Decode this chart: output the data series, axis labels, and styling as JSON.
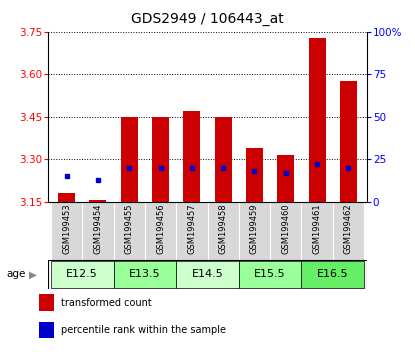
{
  "title": "GDS2949 / 106443_at",
  "samples": [
    "GSM199453",
    "GSM199454",
    "GSM199455",
    "GSM199456",
    "GSM199457",
    "GSM199458",
    "GSM199459",
    "GSM199460",
    "GSM199461",
    "GSM199462"
  ],
  "transformed_count": [
    3.18,
    3.155,
    3.45,
    3.45,
    3.47,
    3.45,
    3.34,
    3.315,
    3.73,
    3.575
  ],
  "percentile_rank": [
    15,
    13,
    20,
    20,
    20,
    20,
    18,
    17,
    22,
    20
  ],
  "ymin": 3.15,
  "ymax": 3.75,
  "yticks": [
    3.15,
    3.3,
    3.45,
    3.6,
    3.75
  ],
  "right_yticks": [
    0,
    25,
    50,
    75,
    100
  ],
  "right_ylabels": [
    "0",
    "25",
    "50",
    "75",
    "100%"
  ],
  "age_groups": [
    {
      "label": "E12.5",
      "samples": [
        0,
        1
      ],
      "color": "#ccffcc"
    },
    {
      "label": "E13.5",
      "samples": [
        2,
        3
      ],
      "color": "#99ff99"
    },
    {
      "label": "E14.5",
      "samples": [
        4,
        5
      ],
      "color": "#ccffcc"
    },
    {
      "label": "E15.5",
      "samples": [
        6,
        7
      ],
      "color": "#99ff99"
    },
    {
      "label": "E16.5",
      "samples": [
        8,
        9
      ],
      "color": "#66ee66"
    }
  ],
  "bar_color": "#cc0000",
  "dot_color": "#0000cc",
  "bar_width": 0.55,
  "baseline": 3.15,
  "bg_color": "#d8d8d8",
  "title_fontsize": 10,
  "tick_fontsize": 7.5,
  "sample_fontsize": 6,
  "age_fontsize": 8
}
